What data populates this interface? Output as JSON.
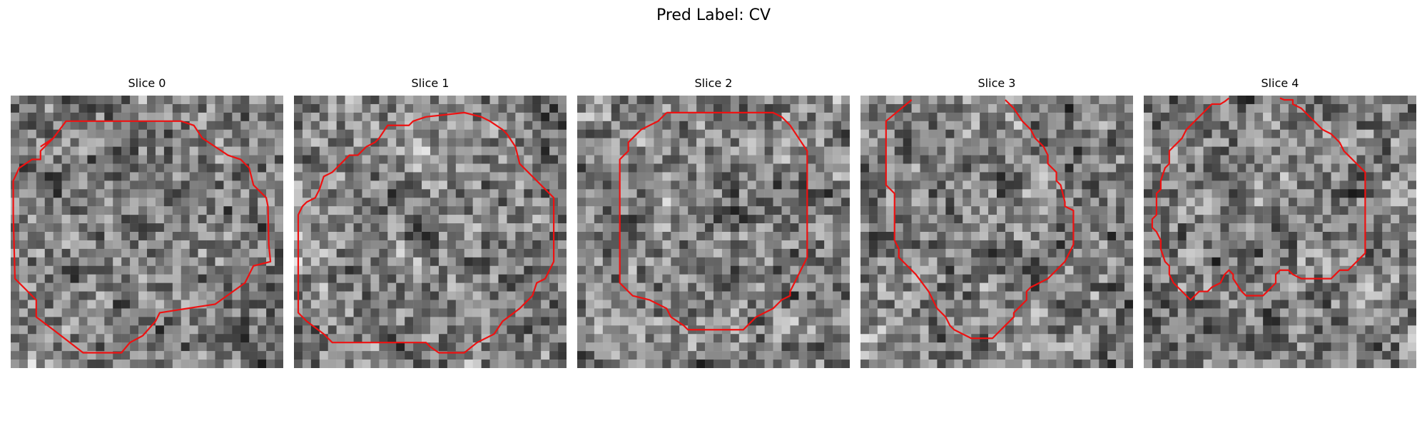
{
  "figure": {
    "title": "Pred Label: CV",
    "contour_color": "#ee1111",
    "colormap": "gray"
  },
  "panels": [
    {
      "title": "Slice 0"
    },
    {
      "title": "Slice 1"
    },
    {
      "title": "Slice 2"
    },
    {
      "title": "Slice 3"
    },
    {
      "title": "Slice 4"
    }
  ]
}
